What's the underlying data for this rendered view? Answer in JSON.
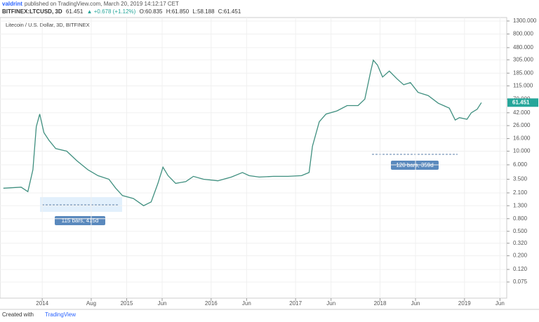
{
  "header": {
    "user": "valdrint",
    "published": "published on TradingView.com, March 20, 2019 14:12:17 CET",
    "symbol": "BITFINEX:LTCUSD, 3D",
    "last": "61.451",
    "change": "▲ +0.678 (+1.12%)",
    "open": "O:60.835",
    "high": "H:61.850",
    "low": "L:58.188",
    "close": "C:61.451"
  },
  "footer": {
    "created": "Created with",
    "brand": "TradingView"
  },
  "chart_data": {
    "type": "line",
    "title": "Litecoin / U.S. Dollar, 3D, BITFINEX",
    "x": [
      2013.54,
      2013.75,
      2013.83,
      2013.89,
      2013.93,
      2013.97,
      2014.02,
      2014.08,
      2014.16,
      2014.29,
      2014.41,
      2014.54,
      2014.66,
      2014.79,
      2014.87,
      2014.95,
      2015.08,
      2015.2,
      2015.29,
      2015.37,
      2015.43,
      2015.49,
      2015.58,
      2015.7,
      2015.79,
      2015.91,
      2016.08,
      2016.24,
      2016.37,
      2016.45,
      2016.57,
      2016.74,
      2016.91,
      2017.07,
      2017.16,
      2017.2,
      2017.28,
      2017.36,
      2017.49,
      2017.61,
      2017.74,
      2017.82,
      2017.89,
      2017.92,
      2017.97,
      2018.03,
      2018.11,
      2018.2,
      2018.28,
      2018.36,
      2018.45,
      2018.57,
      2018.69,
      2018.82,
      2018.89,
      2018.94,
      2019.03,
      2019.08,
      2019.15,
      2019.2
    ],
    "series": [
      {
        "name": "LTCUSD",
        "color": "#3f8f7f",
        "values": [
          2.5,
          2.6,
          2.2,
          5,
          25,
          40,
          20,
          15,
          11,
          10,
          7,
          5,
          4,
          3.5,
          2.5,
          1.9,
          1.7,
          1.3,
          1.5,
          3,
          5.5,
          4,
          3,
          3.2,
          3.9,
          3.5,
          3.3,
          3.8,
          4.5,
          4,
          3.8,
          3.9,
          3.9,
          4,
          4.5,
          12,
          30,
          40,
          45,
          55,
          55,
          70,
          200,
          300,
          250,
          160,
          200,
          150,
          120,
          130,
          90,
          80,
          60,
          50,
          32,
          35,
          33,
          42,
          48,
          61.451
        ]
      }
    ],
    "price_label": "61.451",
    "log_scale": true,
    "grid": true,
    "xlim": [
      2013.5,
      2019.5
    ],
    "ylim": [
      0.041,
      1480
    ],
    "xticks": [
      {
        "value": 2014,
        "label": "2014"
      },
      {
        "value": 2014.58,
        "label": "Aug"
      },
      {
        "value": 2015,
        "label": "2015"
      },
      {
        "value": 2015.42,
        "label": "Jun"
      },
      {
        "value": 2016,
        "label": "2016"
      },
      {
        "value": 2016.42,
        "label": "Jun"
      },
      {
        "value": 2017,
        "label": "2017"
      },
      {
        "value": 2017.42,
        "label": "Jun"
      },
      {
        "value": 2018,
        "label": "2018"
      },
      {
        "value": 2018.42,
        "label": "Jun"
      },
      {
        "value": 2019,
        "label": "2019"
      },
      {
        "value": 2019.42,
        "label": "Jun"
      }
    ],
    "yticks": [
      {
        "value": 0.075,
        "label": "0.075"
      },
      {
        "value": 0.12,
        "label": "0.120"
      },
      {
        "value": 0.2,
        "label": "0.200"
      },
      {
        "value": 0.32,
        "label": "0.320"
      },
      {
        "value": 0.5,
        "label": "0.500"
      },
      {
        "value": 0.8,
        "label": "0.800"
      },
      {
        "value": 1.3,
        "label": "1.300"
      },
      {
        "value": 2.1,
        "label": "2.100"
      },
      {
        "value": 3.5,
        "label": "3.500"
      },
      {
        "value": 6,
        "label": "6.000"
      },
      {
        "value": 10,
        "label": "10.000"
      },
      {
        "value": 16,
        "label": "16.000"
      },
      {
        "value": 26,
        "label": "26.000"
      },
      {
        "value": 42,
        "label": "42.000"
      },
      {
        "value": 70,
        "label": "70.000"
      },
      {
        "value": 115,
        "label": "115.000"
      },
      {
        "value": 185,
        "label": "185.000"
      },
      {
        "value": 305,
        "label": "305.000"
      },
      {
        "value": 480,
        "label": "480.000"
      },
      {
        "value": 800,
        "label": "800.000"
      },
      {
        "value": 1300,
        "label": "1300.000"
      }
    ],
    "annotations": [
      "115 bars, 415d",
      "120 bars, 359d"
    ]
  }
}
